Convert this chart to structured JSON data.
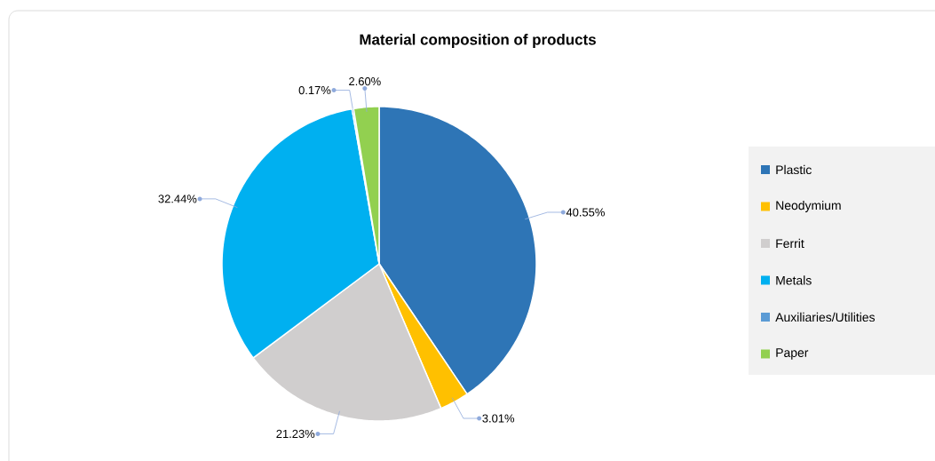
{
  "chart_data": {
    "type": "pie",
    "title": "Material composition of products",
    "categories": [
      "Plastic",
      "Neodymium",
      "Ferrit",
      "Metals",
      "Auxiliaries/Utilities",
      "Paper"
    ],
    "values": [
      40.55,
      3.01,
      21.23,
      32.44,
      0.17,
      2.6
    ],
    "value_labels": [
      "40.55%",
      "3.01%",
      "21.23%",
      "32.44%",
      "0.17%",
      "2.60%"
    ],
    "colors": [
      "#2e75b6",
      "#ffc000",
      "#d0cece",
      "#00b0f0",
      "#5b9bd5",
      "#92d050"
    ],
    "legend": "right"
  }
}
